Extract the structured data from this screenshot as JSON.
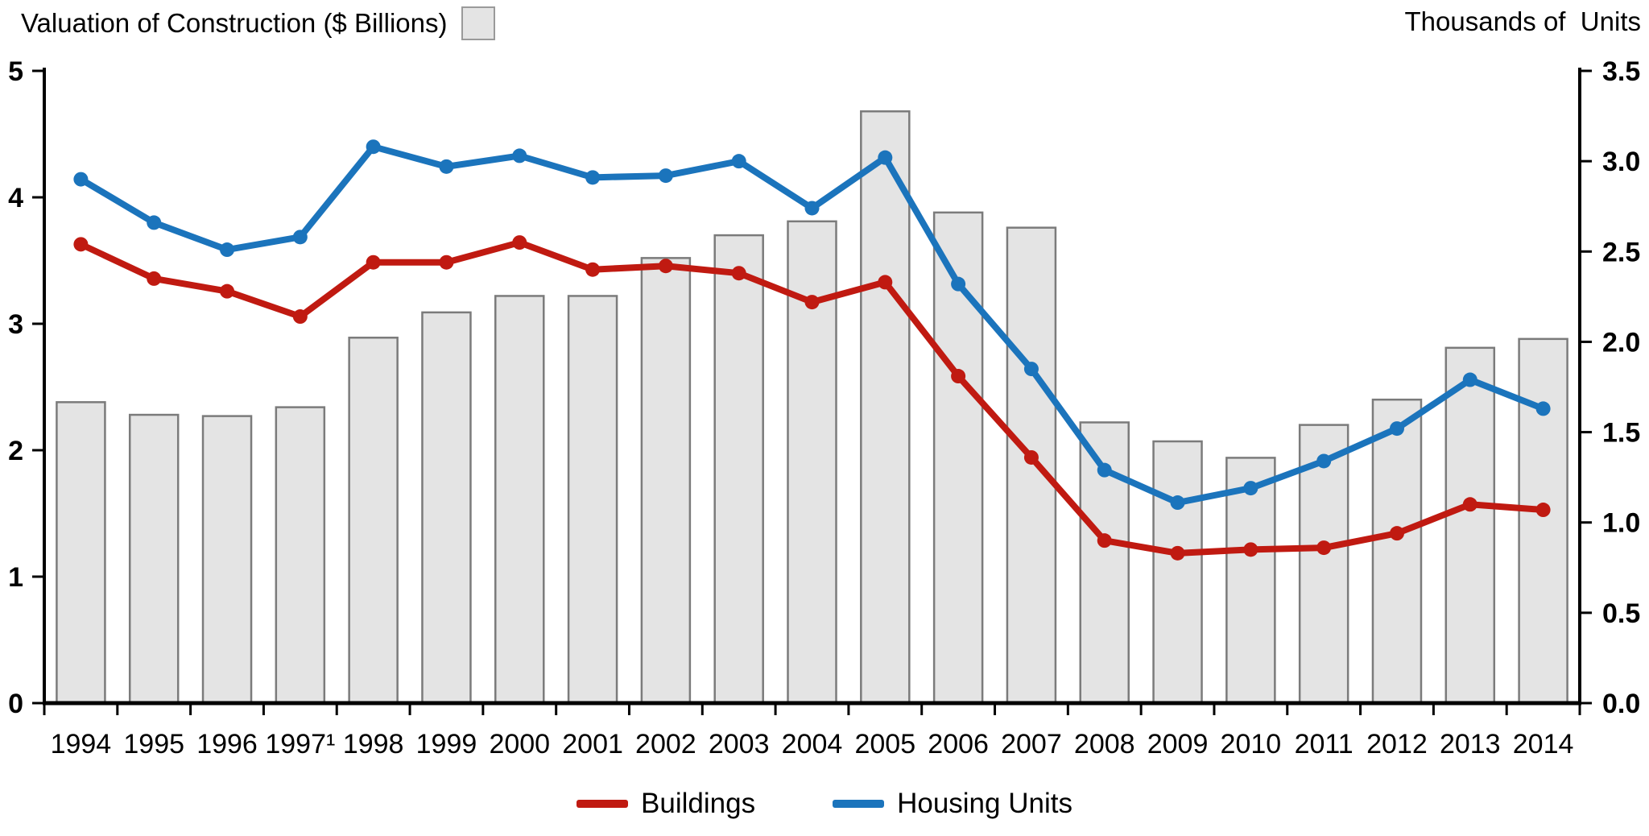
{
  "header": {
    "left_title": "Valuation of Construction ($ Billions)",
    "right_title": "Thousands of  Units"
  },
  "legend": {
    "items": [
      {
        "label": "Buildings",
        "color": "#c01a11"
      },
      {
        "label": "Housing Units",
        "color": "#1b74bc"
      }
    ]
  },
  "chart_data": {
    "type": "combo: bar (left axis) + two lines with markers (right axis)",
    "categories": [
      "1994",
      "1995",
      "1996",
      "1997¹",
      "1998",
      "1999",
      "2000",
      "2001",
      "2002",
      "2003",
      "2004",
      "2005",
      "2006",
      "2007",
      "2008",
      "2009",
      "2010",
      "2011",
      "2012",
      "2013",
      "2014"
    ],
    "bars": {
      "name": "Valuation of Construction",
      "unit": "$ Billions",
      "axis": "left",
      "color": "#e4e4e4",
      "border_color": "#7b7b7b",
      "values": [
        2.38,
        2.28,
        2.27,
        2.34,
        2.89,
        3.09,
        3.22,
        3.22,
        3.52,
        3.7,
        3.81,
        4.68,
        3.88,
        3.76,
        2.22,
        2.07,
        1.94,
        2.2,
        2.4,
        2.81,
        2.88
      ]
    },
    "series": [
      {
        "name": "Buildings",
        "axis": "right",
        "unit": "Thousands of Units",
        "color": "#c01a11",
        "values": [
          2.54,
          2.35,
          2.28,
          2.14,
          2.44,
          2.44,
          2.55,
          2.4,
          2.42,
          2.38,
          2.22,
          2.33,
          1.81,
          1.36,
          0.9,
          0.83,
          0.85,
          0.86,
          0.94,
          1.1,
          1.07
        ]
      },
      {
        "name": "Housing Units",
        "axis": "right",
        "unit": "Thousands of Units",
        "color": "#1b74bc",
        "values": [
          2.9,
          2.66,
          2.51,
          2.58,
          3.08,
          2.97,
          3.03,
          2.91,
          2.92,
          3.0,
          2.74,
          3.02,
          2.32,
          1.85,
          1.29,
          1.11,
          1.19,
          1.34,
          1.52,
          1.79,
          1.63
        ]
      }
    ],
    "left_axis": {
      "title": "Valuation of Construction ($ Billions)",
      "min": 0,
      "max": 5,
      "ticks": [
        "0",
        "1",
        "2",
        "3",
        "4",
        "5"
      ]
    },
    "right_axis": {
      "title": "Thousands of Units",
      "min": 0,
      "max": 3.5,
      "ticks": [
        "0.0",
        "0.5",
        "1.0",
        "1.5",
        "2.0",
        "2.5",
        "3.0",
        "3.5"
      ]
    },
    "grid": false,
    "legend_position": "bottom"
  }
}
